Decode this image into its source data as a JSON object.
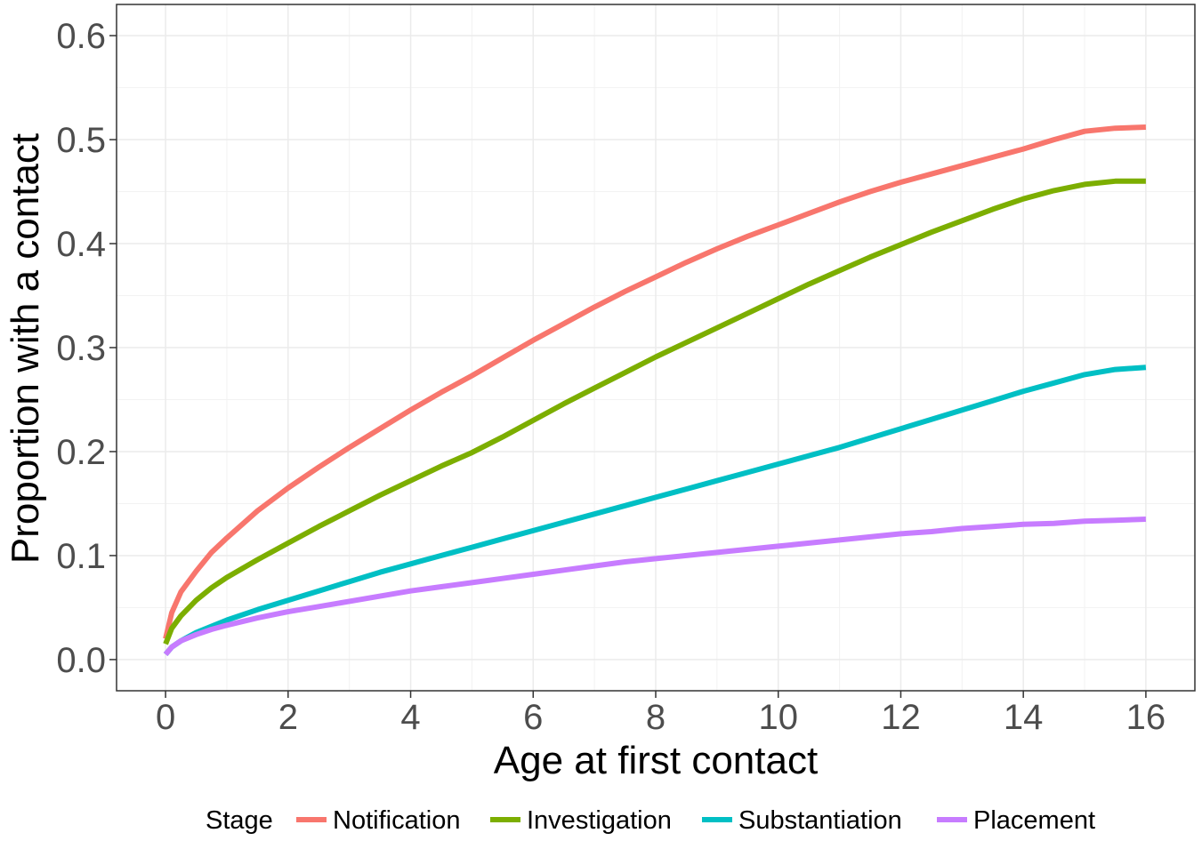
{
  "chart_data": {
    "type": "line",
    "xlabel": "Age at first contact",
    "ylabel": "Proportion with a contact",
    "xlim": [
      -0.8,
      16.8
    ],
    "ylim": [
      -0.03,
      0.63
    ],
    "xticks": [
      0,
      2,
      4,
      6,
      8,
      10,
      12,
      14,
      16
    ],
    "xtick_labels": [
      "0",
      "2",
      "4",
      "6",
      "8",
      "10",
      "12",
      "14",
      "16"
    ],
    "yticks": [
      0.0,
      0.1,
      0.2,
      0.3,
      0.4,
      0.5,
      0.6
    ],
    "ytick_labels": [
      "0.0",
      "0.1",
      "0.2",
      "0.3",
      "0.4",
      "0.5",
      "0.6"
    ],
    "grid": true,
    "legend": {
      "title": "Stage",
      "position": "bottom"
    },
    "x": [
      0,
      0.1,
      0.25,
      0.5,
      0.75,
      1,
      1.5,
      2,
      2.5,
      3,
      3.5,
      4,
      4.5,
      5,
      5.5,
      6,
      6.5,
      7,
      7.5,
      8,
      8.5,
      9,
      9.5,
      10,
      10.5,
      11,
      11.5,
      12,
      12.5,
      13,
      13.5,
      14,
      14.5,
      15,
      15.5,
      16
    ],
    "series": [
      {
        "name": "Notification",
        "color": "#F8766D",
        "values": [
          0.02,
          0.045,
          0.065,
          0.085,
          0.103,
          0.117,
          0.143,
          0.165,
          0.185,
          0.204,
          0.222,
          0.24,
          0.257,
          0.273,
          0.29,
          0.307,
          0.323,
          0.339,
          0.354,
          0.368,
          0.382,
          0.395,
          0.407,
          0.418,
          0.429,
          0.44,
          0.45,
          0.459,
          0.467,
          0.475,
          0.483,
          0.491,
          0.5,
          0.508,
          0.511,
          0.512
        ]
      },
      {
        "name": "Investigation",
        "color": "#7CAE00",
        "values": [
          0.015,
          0.03,
          0.042,
          0.057,
          0.069,
          0.079,
          0.096,
          0.112,
          0.128,
          0.143,
          0.158,
          0.172,
          0.186,
          0.199,
          0.214,
          0.23,
          0.246,
          0.261,
          0.276,
          0.291,
          0.305,
          0.319,
          0.333,
          0.347,
          0.361,
          0.374,
          0.387,
          0.399,
          0.411,
          0.422,
          0.433,
          0.443,
          0.451,
          0.457,
          0.46,
          0.46
        ]
      },
      {
        "name": "Substantiation",
        "color": "#00BFC4",
        "values": [
          0.005,
          0.012,
          0.018,
          0.026,
          0.032,
          0.038,
          0.048,
          0.057,
          0.066,
          0.075,
          0.084,
          0.092,
          0.1,
          0.108,
          0.116,
          0.124,
          0.132,
          0.14,
          0.148,
          0.156,
          0.164,
          0.172,
          0.18,
          0.188,
          0.196,
          0.204,
          0.213,
          0.222,
          0.231,
          0.24,
          0.249,
          0.258,
          0.266,
          0.274,
          0.279,
          0.281
        ]
      },
      {
        "name": "Placement",
        "color": "#C77CFF",
        "values": [
          0.005,
          0.012,
          0.018,
          0.024,
          0.029,
          0.033,
          0.04,
          0.046,
          0.051,
          0.056,
          0.061,
          0.066,
          0.07,
          0.074,
          0.078,
          0.082,
          0.086,
          0.09,
          0.094,
          0.097,
          0.1,
          0.103,
          0.106,
          0.109,
          0.112,
          0.115,
          0.118,
          0.121,
          0.123,
          0.126,
          0.128,
          0.13,
          0.131,
          0.133,
          0.134,
          0.135
        ]
      }
    ]
  }
}
